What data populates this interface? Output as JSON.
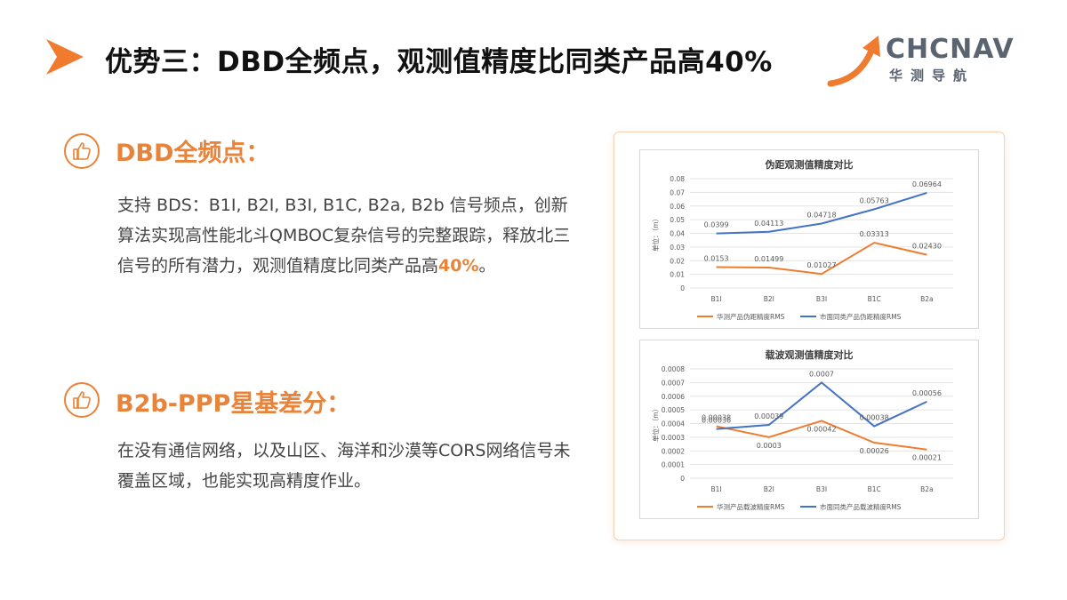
{
  "header": {
    "title": "优势三：DBD全频点，观测值精度比同类产品高40%",
    "logo_text": "CHCNAV",
    "logo_sub": "华测导航",
    "accent_color": "#e8833a"
  },
  "sections": [
    {
      "title": "DBD全频点：",
      "icon": "thumbs-up-icon",
      "body_plain": "支持 BDS：B1I, B2I, B3I, B1C, B2a, B2b 信号频点，创新算法实现高性能北斗QMBOC复杂信号的完整跟踪，释放北三信号的所有潜力，观测值精度比同类产品高",
      "body_highlight": "40%",
      "body_end": "。"
    },
    {
      "title": "B2b-PPP星基差分：",
      "icon": "thumbs-up-icon",
      "body_plain": "在没有通信网络，以及山区、海洋和沙漠等CORS网络信号未覆盖区域，也能实现高精度作业。"
    }
  ],
  "chart_data": [
    {
      "type": "line",
      "title": "伪距观测值精度对比",
      "ylabel": "单位：（m）",
      "categories": [
        "B1I",
        "B2I",
        "B3I",
        "B1C",
        "B2a"
      ],
      "ylim": [
        0,
        0.08
      ],
      "yticks": [
        "0",
        "0.01",
        "0.02",
        "0.03",
        "0.04",
        "0.05",
        "0.06",
        "0.07",
        "0.08"
      ],
      "grid": true,
      "legend": "bottom",
      "series": [
        {
          "name": "华测产品伪距精度RMS",
          "color": "#ed7d31",
          "values": [
            0.0153,
            0.01499,
            0.01027,
            0.03313,
            0.0243
          ],
          "labels": [
            "0.0153",
            "0.01499",
            "0.01027",
            "0.03313",
            "0.02430"
          ]
        },
        {
          "name": "市面同类产品伪距精度RMS",
          "color": "#4472c4",
          "values": [
            0.0399,
            0.04113,
            0.04718,
            0.05763,
            0.06964
          ],
          "labels": [
            "0.0399",
            "0.04113",
            "0.04718",
            "0.05763",
            "0.06964"
          ]
        }
      ]
    },
    {
      "type": "line",
      "title": "载波观测值精度对比",
      "ylabel": "单位：（m）",
      "categories": [
        "B1I",
        "B2I",
        "B3I",
        "B1C",
        "B2a"
      ],
      "ylim": [
        0,
        0.0008
      ],
      "yticks": [
        "0",
        "0.0001",
        "0.0002",
        "0.0003",
        "0.0004",
        "0.0005",
        "0.0006",
        "0.0007",
        "0.0008"
      ],
      "grid": true,
      "legend": "bottom",
      "series": [
        {
          "name": "华测产品载波精度RMS",
          "color": "#ed7d31",
          "values": [
            0.00038,
            0.0003,
            0.00042,
            0.00026,
            0.00021
          ],
          "labels": [
            "0.00038",
            "0.0003",
            "0.00042",
            "0.00026",
            "0.00021"
          ]
        },
        {
          "name": "市面同类产品载波精度RMS",
          "color": "#4472c4",
          "values": [
            0.00036,
            0.00039,
            0.0007,
            0.00038,
            0.00056
          ],
          "labels": [
            "0.00036",
            "0.00039",
            "0.0007",
            "0.00038",
            "0.00056"
          ]
        }
      ]
    }
  ]
}
